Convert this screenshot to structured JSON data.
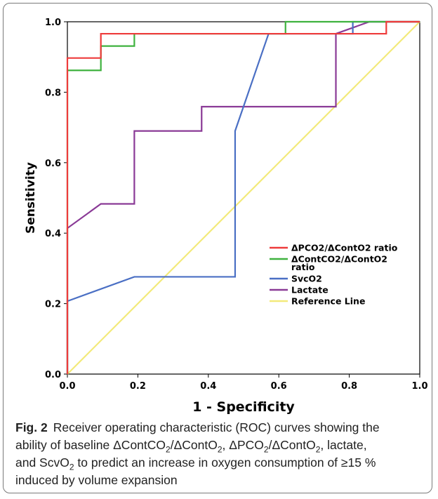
{
  "caption": {
    "label": "Fig. 2",
    "line1": "Receiver operating characteristic (ROC) curves showing the",
    "line2_parts": [
      "ability of baseline ΔContCO",
      "2",
      "/ΔContO",
      "2",
      ", ΔPCO",
      "2",
      "/ΔContO",
      "2",
      ", lactate,"
    ],
    "line3_parts": [
      "and ScvO",
      "2",
      " to predict an increase in oxygen consumption of ≥15 %"
    ],
    "line4": "induced by volume expansion"
  },
  "chart_data": {
    "type": "line",
    "xlabel": "1 - Specificity",
    "ylabel": "Sensitivity",
    "xlim": [
      0.0,
      1.0
    ],
    "ylim": [
      0.0,
      1.0
    ],
    "x_ticks": [
      "0.0",
      "0.2",
      "0.4",
      "0.6",
      "0.8",
      "1.0"
    ],
    "y_ticks": [
      "0.0",
      "0.2",
      "0.4",
      "0.6",
      "0.8",
      "1.0"
    ],
    "legend_position": "center-right",
    "series": [
      {
        "name": "ΔPCO2/ΔContO2 ratio",
        "color": "#ee3b3b",
        "points": [
          [
            0,
            0
          ],
          [
            0,
            0.897
          ],
          [
            0.095,
            0.897
          ],
          [
            0.095,
            0.966
          ],
          [
            0.19,
            0.966
          ],
          [
            0.81,
            0.966
          ],
          [
            0.81,
            0.966
          ],
          [
            0.905,
            0.966
          ],
          [
            0.905,
            1.0
          ],
          [
            1.0,
            1.0
          ]
        ]
      },
      {
        "name": "ΔContCO2/ΔContO2 ratio",
        "color": "#3fb23f",
        "points": [
          [
            0,
            0
          ],
          [
            0,
            0.862
          ],
          [
            0.095,
            0.862
          ],
          [
            0.095,
            0.931
          ],
          [
            0.19,
            0.931
          ],
          [
            0.19,
            0.966
          ],
          [
            0.619,
            0.966
          ],
          [
            0.619,
            1.0
          ],
          [
            1.0,
            1.0
          ]
        ]
      },
      {
        "name": "SvcO2",
        "color": "#4a6fc4",
        "points": [
          [
            0,
            0
          ],
          [
            0,
            0.207
          ],
          [
            0.19,
            0.276
          ],
          [
            0.476,
            0.276
          ],
          [
            0.476,
            0.69
          ],
          [
            0.571,
            0.966
          ],
          [
            0.81,
            0.966
          ],
          [
            0.81,
            1.0
          ],
          [
            1.0,
            1.0
          ]
        ]
      },
      {
        "name": "Lactate",
        "color": "#8a3a96",
        "points": [
          [
            0,
            0
          ],
          [
            0,
            0.414
          ],
          [
            0.095,
            0.483
          ],
          [
            0.19,
            0.483
          ],
          [
            0.19,
            0.69
          ],
          [
            0.381,
            0.69
          ],
          [
            0.381,
            0.759
          ],
          [
            0.762,
            0.759
          ],
          [
            0.762,
            0.966
          ],
          [
            0.857,
            1.0
          ],
          [
            1.0,
            1.0
          ]
        ]
      },
      {
        "name": "Reference Line",
        "color": "#f3ea7a",
        "points": [
          [
            0,
            0
          ],
          [
            1,
            1
          ]
        ]
      }
    ],
    "legend": [
      {
        "label": "ΔPCO2/ΔContO2 ratio",
        "color": "#ee3b3b"
      },
      {
        "label": "ΔContCO2/ΔContO2",
        "label2": "ratio",
        "color": "#3fb23f"
      },
      {
        "label": "SvcO2",
        "color": "#4a6fc4"
      },
      {
        "label": "Lactate",
        "color": "#8a3a96"
      },
      {
        "label": "Reference Line",
        "color": "#f3ea7a"
      }
    ]
  }
}
